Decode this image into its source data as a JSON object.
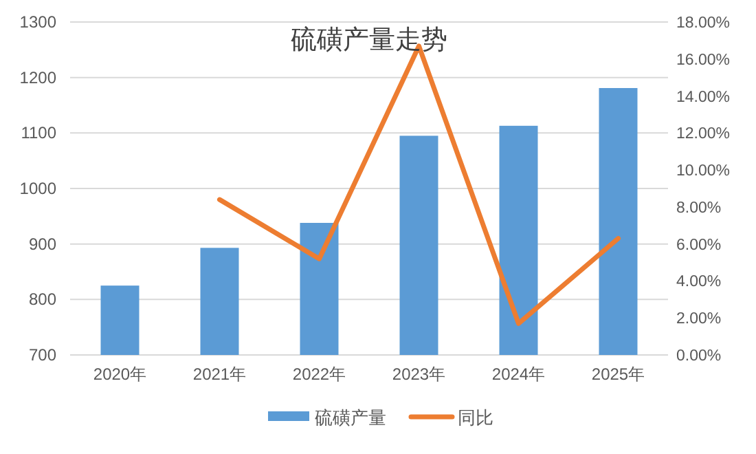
{
  "chart_data": {
    "type": "bar",
    "title": "硫磺产量走势",
    "categories": [
      "2020年",
      "2021年",
      "2022年",
      "2023年",
      "2024年",
      "2025年"
    ],
    "series": [
      {
        "name": "硫磺产量",
        "color": "#5b9bd5",
        "values": [
          825,
          893,
          938,
          1095,
          1113,
          1181
        ]
      },
      {
        "name": "同比",
        "type": "line",
        "axis": "y2",
        "color": "#ed7d31",
        "marker": "none",
        "values": [
          null,
          8.4,
          5.2,
          16.7,
          1.7,
          6.3
        ]
      }
    ],
    "ylim": [
      700,
      1300
    ],
    "yticks": [
      700,
      800,
      900,
      1000,
      1100,
      1200,
      1300
    ],
    "y2lim": [
      0,
      18
    ],
    "y2ticks": [
      {
        "value": 0,
        "label": "0.00%"
      },
      {
        "value": 2,
        "label": "2.00%"
      },
      {
        "value": 4,
        "label": "4.00%"
      },
      {
        "value": 6,
        "label": "6.00%"
      },
      {
        "value": 8,
        "label": "8.00%"
      },
      {
        "value": 10,
        "label": "10.00%"
      },
      {
        "value": 12,
        "label": "12.00%"
      },
      {
        "value": 14,
        "label": "14.00%"
      },
      {
        "value": 16,
        "label": "16.00%"
      },
      {
        "value": 18,
        "label": "18.00%"
      }
    ],
    "grid": "y",
    "legend": "bottom"
  }
}
